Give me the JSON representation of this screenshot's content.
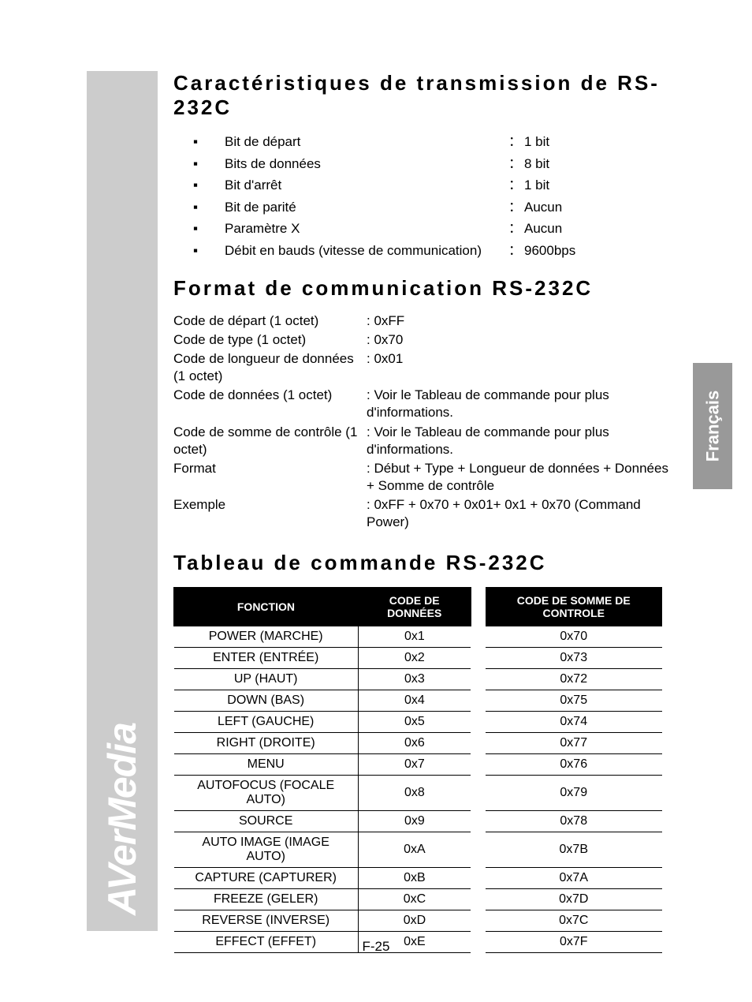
{
  "brand": "AVerMedia",
  "language_tab": "Français",
  "page_number": "F-25",
  "section1": {
    "title": "Caractéristiques de transmission de RS-232C",
    "rows": [
      {
        "label": "Bit de départ",
        "sep": "：",
        "value": "1 bit"
      },
      {
        "label": "Bits de données",
        "sep": "：",
        "value": "8 bit"
      },
      {
        "label": "Bit d'arrêt",
        "sep": "：",
        "value": "1 bit"
      },
      {
        "label": "Bit de parité",
        "sep": "：",
        "value": "Aucun"
      },
      {
        "label": "Paramètre X",
        "sep": "：",
        "value": "Aucun"
      },
      {
        "label": "Débit en bauds (vitesse de communication)",
        "sep": "：",
        "value": "9600bps"
      }
    ]
  },
  "section2": {
    "title": "Format de communication RS-232C",
    "rows": [
      {
        "label": "Code de départ (1 octet)",
        "value": ": 0xFF"
      },
      {
        "label": "Code de type (1 octet)",
        "value": ": 0x70"
      },
      {
        "label": "Code de longueur de données (1 octet)",
        "value": ": 0x01"
      },
      {
        "label": "Code de données (1 octet)",
        "value": ": Voir le Tableau de commande pour plus d'informations."
      },
      {
        "label": "Code de somme de contrôle (1 octet)",
        "value": ": Voir le Tableau de commande pour plus d'informations."
      },
      {
        "label": "Format",
        "value": ": Début  + Type + Longueur de données + Données + Somme de contrôle"
      },
      {
        "label": "Exemple",
        "value": ": 0xFF + 0x70 + 0x01+ 0x1 + 0x70 (Command Power)"
      }
    ]
  },
  "section3": {
    "title": "Tableau de commande RS-232C",
    "columns": [
      "FONCTION",
      "CODE DE DONNÉES",
      "CODE DE SOMME DE CONTROLE"
    ],
    "rows": [
      [
        "POWER (MARCHE)",
        "0x1",
        "0x70"
      ],
      [
        "ENTER (ENTRÉE)",
        "0x2",
        "0x73"
      ],
      [
        "UP (HAUT)",
        "0x3",
        "0x72"
      ],
      [
        "DOWN (BAS)",
        "0x4",
        "0x75"
      ],
      [
        "LEFT (GAUCHE)",
        "0x5",
        "0x74"
      ],
      [
        "RIGHT (DROITE)",
        "0x6",
        "0x77"
      ],
      [
        "MENU",
        "0x7",
        "0x76"
      ],
      [
        "AUTOFOCUS (FOCALE AUTO)",
        "0x8",
        "0x79"
      ],
      [
        "SOURCE",
        "0x9",
        "0x78"
      ],
      [
        "AUTO IMAGE (IMAGE AUTO)",
        "0xA",
        "0x7B"
      ],
      [
        "CAPTURE (CAPTURER)",
        "0xB",
        "0x7A"
      ],
      [
        "FREEZE (GELER)",
        "0xC",
        "0x7D"
      ],
      [
        "REVERSE (INVERSE)",
        "0xD",
        "0x7C"
      ],
      [
        "EFFECT (EFFET)",
        "0xE",
        "0x7F"
      ]
    ]
  }
}
